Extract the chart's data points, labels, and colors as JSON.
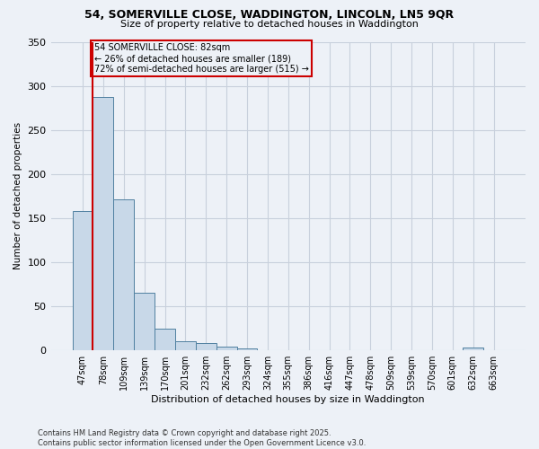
{
  "title1": "54, SOMERVILLE CLOSE, WADDINGTON, LINCOLN, LN5 9QR",
  "title2": "Size of property relative to detached houses in Waddington",
  "xlabel": "Distribution of detached houses by size in Waddington",
  "ylabel": "Number of detached properties",
  "footnote1": "Contains HM Land Registry data © Crown copyright and database right 2025.",
  "footnote2": "Contains public sector information licensed under the Open Government Licence v3.0.",
  "bin_labels": [
    "47sqm",
    "78sqm",
    "109sqm",
    "139sqm",
    "170sqm",
    "201sqm",
    "232sqm",
    "262sqm",
    "293sqm",
    "324sqm",
    "355sqm",
    "386sqm",
    "416sqm",
    "447sqm",
    "478sqm",
    "509sqm",
    "539sqm",
    "570sqm",
    "601sqm",
    "632sqm",
    "663sqm"
  ],
  "bar_values": [
    158,
    287,
    171,
    65,
    25,
    10,
    8,
    4,
    2,
    0,
    0,
    0,
    0,
    0,
    0,
    0,
    0,
    0,
    0,
    3,
    0
  ],
  "bar_color": "#c8d8e8",
  "bar_edge_color": "#5080a0",
  "grid_color": "#c8d0dc",
  "background_color": "#edf1f7",
  "annotation_box_color": "#cc0000",
  "property_line_color": "#cc0000",
  "property_bin_index": 1,
  "annotation_text": "54 SOMERVILLE CLOSE: 82sqm\n← 26% of detached houses are smaller (189)\n72% of semi-detached houses are larger (515) →",
  "ylim": [
    0,
    350
  ],
  "yticks": [
    0,
    50,
    100,
    150,
    200,
    250,
    300,
    350
  ]
}
